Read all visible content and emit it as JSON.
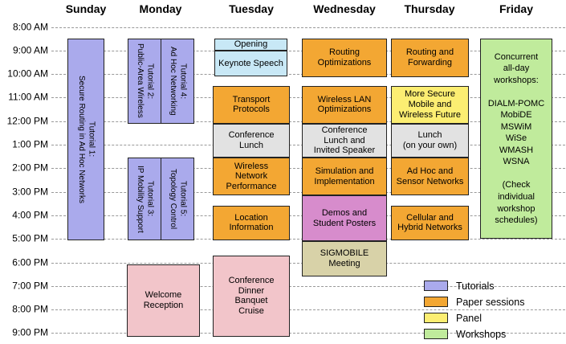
{
  "schedule": {
    "days": [
      "Sunday",
      "Monday",
      "Tuesday",
      "Wednesday",
      "Thursday",
      "Friday"
    ],
    "times": [
      "8:00 AM",
      "9:00 AM",
      "10:00 AM",
      "11:00 AM",
      "12:00 PM",
      "1:00 PM",
      "2:00 PM",
      "3:00 PM",
      "4:00 PM",
      "5:00 PM",
      "6:00 PM",
      "7:00 PM",
      "8:00 PM",
      "9:00 PM"
    ],
    "categories": {
      "tutorial": "#aaaaec",
      "paper": "#f3a733",
      "panel": "#fcee72",
      "workshop": "#c0eb9c",
      "social": "#f2c5ca",
      "demos": "#d78ccc",
      "opening": "#c8e8f6",
      "lunch": "#e2e2e2",
      "meeting": "#d8d2a8"
    },
    "events": [
      {
        "name": "event-tutorial-1",
        "col": "sunday",
        "start": 8.5,
        "end": 17.05,
        "category": "tutorial",
        "vertical": true,
        "label": "Tutorial 1:\nSecure Routing in Ad Hoc Networks"
      },
      {
        "name": "event-tutorial-2",
        "col": "monday-a",
        "start": 8.5,
        "end": 12.1,
        "category": "tutorial",
        "vertical": true,
        "label": "Tutorial 2:\nPublic-Area Wireless"
      },
      {
        "name": "event-tutorial-4",
        "col": "monday-b",
        "start": 8.5,
        "end": 12.1,
        "category": "tutorial",
        "vertical": true,
        "label": "Tutorial 4:\nAd Hoc Networking"
      },
      {
        "name": "event-tutorial-3",
        "col": "monday-a",
        "start": 13.55,
        "end": 17.05,
        "category": "tutorial",
        "vertical": true,
        "label": "Tutorial 3:\nIP Mobility Support"
      },
      {
        "name": "event-tutorial-5",
        "col": "monday-b",
        "start": 13.55,
        "end": 17.05,
        "category": "tutorial",
        "vertical": true,
        "label": "Tutorial 5:\nTopology Control"
      },
      {
        "name": "event-welcome-reception",
        "col": "monday-wide",
        "start": 18.1,
        "end": 21.15,
        "category": "social",
        "label": "Welcome\nReception"
      },
      {
        "name": "event-opening",
        "col": "tuesday-narrow",
        "start": 8.5,
        "end": 9.0,
        "category": "opening",
        "label": "Opening"
      },
      {
        "name": "event-keynote-speech",
        "col": "tuesday-narrow",
        "start": 9.0,
        "end": 10.1,
        "category": "opening",
        "label": "Keynote Speech"
      },
      {
        "name": "event-transport-protocols",
        "col": "tuesday",
        "start": 10.5,
        "end": 12.1,
        "category": "paper",
        "label": "Transport\nProtocols"
      },
      {
        "name": "event-conference-lunch",
        "col": "tuesday",
        "start": 12.1,
        "end": 13.55,
        "category": "lunch",
        "label": "Conference\nLunch"
      },
      {
        "name": "event-wireless-network-performance",
        "col": "tuesday",
        "start": 13.55,
        "end": 15.15,
        "category": "paper",
        "label": "Wireless\nNetwork\nPerformance"
      },
      {
        "name": "event-location-information",
        "col": "tuesday",
        "start": 15.6,
        "end": 17.05,
        "category": "paper",
        "label": "Location\nInformation"
      },
      {
        "name": "event-conference-dinner",
        "col": "tuesday",
        "start": 17.7,
        "end": 21.15,
        "category": "social",
        "label": "Conference\nDinner\nBanquet\nCruise"
      },
      {
        "name": "event-routing-optimizations",
        "col": "wednesday",
        "start": 8.5,
        "end": 10.12,
        "category": "paper",
        "label": "Routing\nOptimizations"
      },
      {
        "name": "event-wireless-lan-optimizations",
        "col": "wednesday",
        "start": 10.5,
        "end": 12.1,
        "category": "paper",
        "label": "Wireless LAN\nOptimizations"
      },
      {
        "name": "event-conference-lunch-invited-speaker",
        "col": "wednesday",
        "start": 12.1,
        "end": 13.55,
        "category": "lunch",
        "label": "Conference\nLunch and\nInvited Speaker"
      },
      {
        "name": "event-simulation-implementation",
        "col": "wednesday",
        "start": 13.55,
        "end": 15.15,
        "category": "paper",
        "label": "Simulation and\nImplementation"
      },
      {
        "name": "event-demos-student-posters",
        "col": "wednesday",
        "start": 15.15,
        "end": 17.1,
        "category": "demos",
        "label": "Demos and\nStudent Posters"
      },
      {
        "name": "event-sigmobile-meeting",
        "col": "wednesday",
        "start": 17.1,
        "end": 18.6,
        "category": "meeting",
        "label": "SIGMOBILE\nMeeting"
      },
      {
        "name": "event-routing-forwarding",
        "col": "thursday",
        "start": 8.5,
        "end": 10.12,
        "category": "paper",
        "label": "Routing and\nForwarding"
      },
      {
        "name": "event-panel-secure-mobile-wireless-future",
        "col": "thursday",
        "start": 10.5,
        "end": 12.1,
        "category": "panel",
        "label": "More Secure\nMobile and\nWireless Future"
      },
      {
        "name": "event-lunch-on-your-own",
        "col": "thursday",
        "start": 12.1,
        "end": 13.55,
        "category": "lunch",
        "label": "Lunch\n(on your own)"
      },
      {
        "name": "event-ad-hoc-sensor-networks",
        "col": "thursday",
        "start": 13.55,
        "end": 15.15,
        "category": "paper",
        "label": "Ad Hoc and\nSensor Networks"
      },
      {
        "name": "event-cellular-hybrid-networks",
        "col": "thursday",
        "start": 15.6,
        "end": 17.05,
        "category": "paper",
        "label": "Cellular and\nHybrid Networks"
      },
      {
        "name": "event-workshops",
        "col": "friday",
        "start": 8.5,
        "end": 17.0,
        "category": "workshop",
        "label": "Concurrent\nall-day\nworkshops:\n\nDIALM-POMC\nMobiDE\nMSWiM\nWiSe\nWMASH\nWSNA\n\n(Check\nindividual\nworkshop\nschedules)"
      }
    ],
    "legend": [
      {
        "label": "Tutorials",
        "category": "tutorial"
      },
      {
        "label": "Paper sessions",
        "category": "paper"
      },
      {
        "label": "Panel",
        "category": "panel"
      },
      {
        "label": "Workshops",
        "category": "workshop"
      }
    ]
  }
}
